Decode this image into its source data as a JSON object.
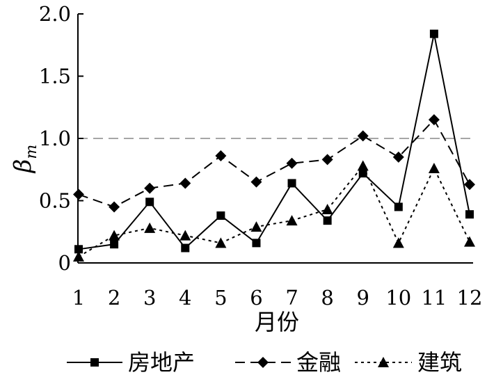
{
  "chart_data": {
    "type": "line",
    "xlabel": "月份",
    "ylabel": "β",
    "ylabel_subscript": "m",
    "x": [
      1,
      2,
      3,
      4,
      5,
      6,
      7,
      8,
      9,
      10,
      11,
      12
    ],
    "ylim": [
      0,
      2.0
    ],
    "yticks": [
      "0",
      "0.5",
      "1.0",
      "1.5",
      "2.0"
    ],
    "reference_line": {
      "y": 1.0,
      "style": "dashed",
      "color": "#a6a6a6"
    },
    "grid": false,
    "legend_position": "bottom",
    "series": [
      {
        "name": "房地产",
        "marker": "square",
        "dash": "solid",
        "values": [
          0.11,
          0.15,
          0.49,
          0.12,
          0.38,
          0.16,
          0.64,
          0.34,
          0.72,
          0.45,
          1.84,
          0.39
        ]
      },
      {
        "name": "金融",
        "marker": "diamond",
        "dash": "dashed",
        "values": [
          0.55,
          0.45,
          0.6,
          0.64,
          0.86,
          0.65,
          0.8,
          0.83,
          1.02,
          0.85,
          1.15,
          0.63
        ]
      },
      {
        "name": "建筑",
        "marker": "triangle",
        "dash": "dotted",
        "values": [
          0.05,
          0.22,
          0.28,
          0.22,
          0.16,
          0.29,
          0.34,
          0.43,
          0.78,
          0.16,
          0.76,
          0.17
        ]
      }
    ]
  }
}
